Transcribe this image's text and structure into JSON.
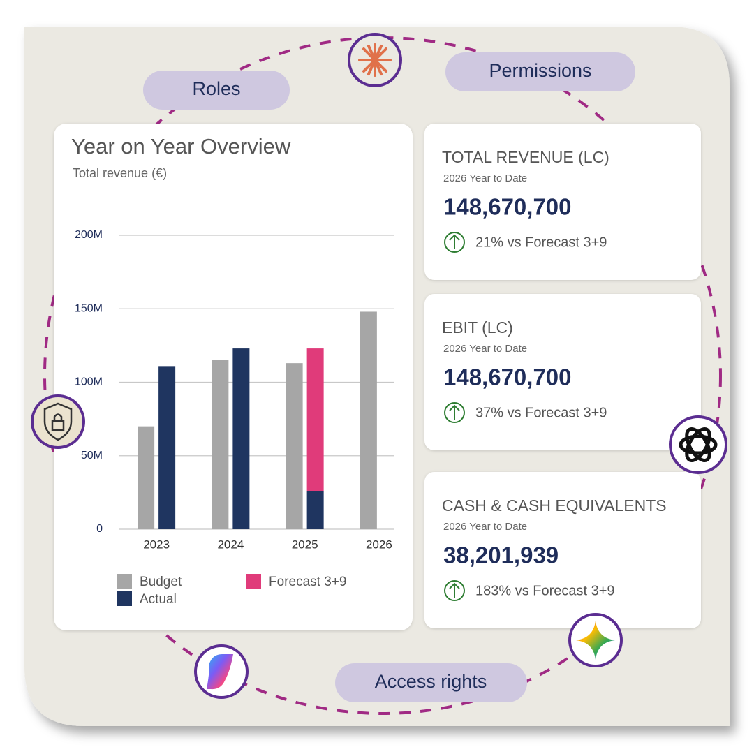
{
  "pills": [
    "Roles",
    "Permissions",
    "Access rights"
  ],
  "chart_data": {
    "type": "bar",
    "title": "Year on Year Overview",
    "subtitle": "Total revenue (€)",
    "categories": [
      "2023",
      "2024",
      "2025",
      "2026"
    ],
    "series": [
      {
        "name": "Budget",
        "color": "#a6a6a6",
        "column": 0,
        "values": [
          70,
          115,
          113,
          148
        ]
      },
      {
        "name": "Actual",
        "color": "#1f3560",
        "column": 1,
        "values": [
          111,
          123,
          26,
          null
        ]
      },
      {
        "name": "Forecast 3+9",
        "color": "#e03b7a",
        "column": 1,
        "values": [
          null,
          null,
          97,
          null
        ]
      }
    ],
    "ylim": [
      0,
      200
    ],
    "yticks": [
      0,
      {
        "value": 50,
        "label": "50M"
      },
      {
        "value": 100,
        "label": "100M"
      },
      {
        "value": 150,
        "label": "150M"
      },
      {
        "value": 200,
        "label": "200M"
      }
    ],
    "grid": true
  },
  "kpis": [
    {
      "title": "TOTAL REVENUE (LC)",
      "period": "2026 Year to Date",
      "value": "148,670,700",
      "change": "21% vs Forecast 3+9"
    },
    {
      "title": "EBIT (LC)",
      "period": "2026 Year to Date",
      "value": "148,670,700",
      "change": "37% vs Forecast 3+9"
    },
    {
      "title": "CASH & CASH EQUIVALENTS",
      "period": "2026 Year to Date",
      "value": "38,201,939",
      "change": "183% vs Forecast 3+9"
    }
  ]
}
